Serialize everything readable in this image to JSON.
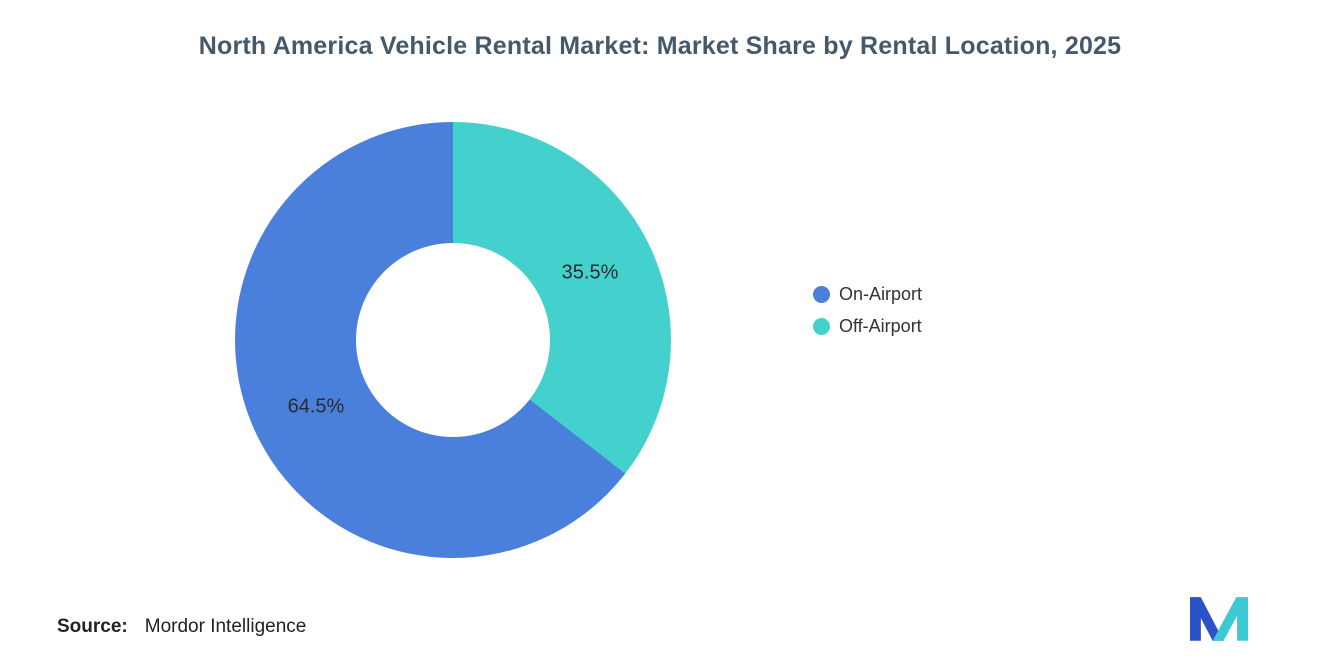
{
  "title": "North America Vehicle Rental Market: Market Share by Rental Location, 2025",
  "colors": {
    "on_airport": "#4A80DB",
    "off_airport": "#44D1CE",
    "title_text": "#46596B",
    "label_text": "#2B2B2B",
    "logo_blue": "#2B52C8",
    "logo_teal": "#3DC8D4"
  },
  "chart_data": {
    "type": "pie",
    "subtype": "donut",
    "title": "North America Vehicle Rental Market: Market Share by Rental Location, 2025",
    "start_angle": "12 o'clock, clockwise",
    "hole_ratio": 0.445,
    "segments_clockwise_from_top": [
      {
        "label": "Off-Airport",
        "value": 35.5,
        "display": "35.5%",
        "color": "#44D1CE"
      },
      {
        "label": "On-Airport",
        "value": 64.5,
        "display": "64.5%",
        "color": "#4A80DB"
      }
    ],
    "legend_position": "right",
    "grid": false
  },
  "legend": {
    "items": [
      {
        "label": "On-Airport",
        "color": "#4A80DB"
      },
      {
        "label": "Off-Airport",
        "color": "#44D1CE"
      }
    ]
  },
  "source": {
    "label": "Source:",
    "text": "Mordor Intelligence"
  },
  "logo": {
    "name": "Mordor Intelligence logo mark"
  }
}
